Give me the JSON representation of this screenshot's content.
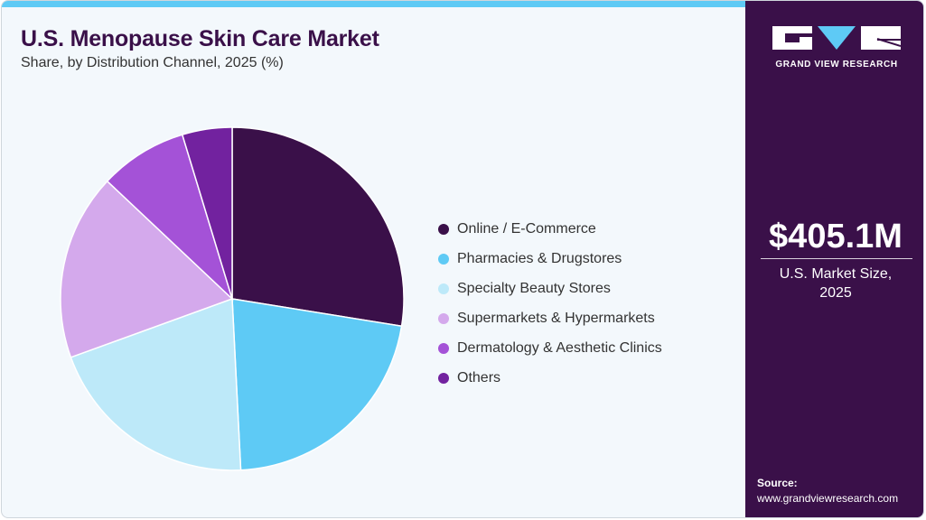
{
  "header": {
    "title": "U.S. Menopause Skin Care Market",
    "subtitle": "Share, by Distribution Channel, 2025 (%)"
  },
  "chart_data": {
    "type": "pie",
    "title": "U.S. Menopause Skin Care Market",
    "subtitle": "Share, by Distribution Channel, 2025 (%)",
    "categories": [
      "Online / E-Commerce",
      "Pharmacies & Drugstores",
      "Specialty Beauty Stores",
      "Supermarkets & Hypermarkets",
      "Dermatology & Aesthetic Clinics",
      "Others"
    ],
    "values": [
      27.6,
      21.7,
      20.3,
      17.6,
      8.3,
      4.7
    ],
    "colors": [
      "#3a1049",
      "#5ecaf5",
      "#bde9f9",
      "#d4a9ec",
      "#a452d7",
      "#72229f"
    ],
    "start_angle": "12 o'clock, clockwise",
    "legend_position": "right"
  },
  "legend": {
    "items": [
      {
        "label": "Online / E-Commerce",
        "color": "#3a1049"
      },
      {
        "label": "Pharmacies & Drugstores",
        "color": "#5ecaf5"
      },
      {
        "label": "Specialty Beauty Stores",
        "color": "#bde9f9"
      },
      {
        "label": "Supermarkets & Hypermarkets",
        "color": "#d4a9ec"
      },
      {
        "label": "Dermatology & Aesthetic Clinics",
        "color": "#a452d7"
      },
      {
        "label": "Others",
        "color": "#72229f"
      }
    ]
  },
  "sidebar": {
    "brand": "GRAND VIEW RESEARCH",
    "market_value": "$405.1M",
    "market_label_line1": "U.S. Market Size,",
    "market_label_line2": "2025",
    "source_label": "Source:",
    "source_url": "www.grandviewresearch.com"
  },
  "colors": {
    "accent": "#5ecaf5",
    "brand_dark": "#3a1049",
    "background": "#f3f8fc"
  }
}
